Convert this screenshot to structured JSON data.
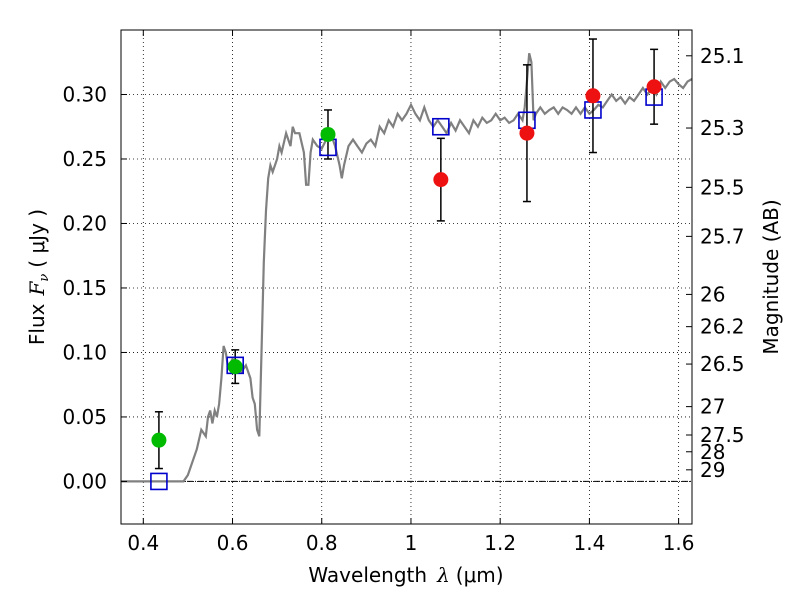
{
  "chart_data": {
    "type": "scatter",
    "xlabel_text": "Wavelength",
    "xlabel_symbol": "λ",
    "xlabel_unit": "(μm)",
    "ylabel_text": "Flux",
    "ylabel_symbol": "F",
    "ylabel_sub": "ν",
    "ylabel_unit": "( μJy )",
    "y2label": "Magnitude (AB)",
    "xlim": [
      0.35,
      1.63
    ],
    "ylim": [
      -0.033,
      0.35
    ],
    "x_ticks": [
      {
        "v": 0.4,
        "label": "0.4"
      },
      {
        "v": 0.6,
        "label": "0.6"
      },
      {
        "v": 0.8,
        "label": "0.8"
      },
      {
        "v": 1.0,
        "label": "1"
      },
      {
        "v": 1.2,
        "label": "1.2"
      },
      {
        "v": 1.4,
        "label": "1.4"
      },
      {
        "v": 1.6,
        "label": "1.6"
      }
    ],
    "y_ticks": [
      {
        "v": 0.0,
        "label": "0.00"
      },
      {
        "v": 0.05,
        "label": "0.05"
      },
      {
        "v": 0.1,
        "label": "0.10"
      },
      {
        "v": 0.15,
        "label": "0.15"
      },
      {
        "v": 0.2,
        "label": "0.20"
      },
      {
        "v": 0.25,
        "label": "0.25"
      },
      {
        "v": 0.3,
        "label": "0.30"
      }
    ],
    "mag_ticks": [
      {
        "v": 0.33,
        "label": "25.1"
      },
      {
        "v": 0.274,
        "label": "25.3"
      },
      {
        "v": 0.228,
        "label": "25.5"
      },
      {
        "v": 0.19,
        "label": "25.7"
      },
      {
        "v": 0.145,
        "label": "26"
      },
      {
        "v": 0.12,
        "label": "26.2"
      },
      {
        "v": 0.091,
        "label": "26.5"
      },
      {
        "v": 0.058,
        "label": "27"
      },
      {
        "v": 0.036,
        "label": "27.5"
      },
      {
        "v": 0.023,
        "label": "28"
      },
      {
        "v": 0.009,
        "label": "29"
      }
    ],
    "colors": {
      "model": "#808080",
      "green": "#00bb00",
      "red": "#ee1111",
      "box": "#0000cc"
    },
    "model_sed": [
      [
        0.35,
        0.0
      ],
      [
        0.49,
        0.0
      ],
      [
        0.5,
        0.005
      ],
      [
        0.52,
        0.025
      ],
      [
        0.53,
        0.04
      ],
      [
        0.54,
        0.035
      ],
      [
        0.545,
        0.05
      ],
      [
        0.55,
        0.055
      ],
      [
        0.555,
        0.045
      ],
      [
        0.56,
        0.055
      ],
      [
        0.565,
        0.05
      ],
      [
        0.57,
        0.06
      ],
      [
        0.575,
        0.08
      ],
      [
        0.58,
        0.105
      ],
      [
        0.585,
        0.1
      ],
      [
        0.59,
        0.088
      ],
      [
        0.6,
        0.095
      ],
      [
        0.61,
        0.09
      ],
      [
        0.62,
        0.085
      ],
      [
        0.63,
        0.09
      ],
      [
        0.64,
        0.08
      ],
      [
        0.645,
        0.065
      ],
      [
        0.65,
        0.06
      ],
      [
        0.655,
        0.04
      ],
      [
        0.66,
        0.035
      ],
      [
        0.665,
        0.1
      ],
      [
        0.67,
        0.17
      ],
      [
        0.675,
        0.21
      ],
      [
        0.68,
        0.235
      ],
      [
        0.685,
        0.245
      ],
      [
        0.69,
        0.24
      ],
      [
        0.7,
        0.25
      ],
      [
        0.705,
        0.26
      ],
      [
        0.71,
        0.255
      ],
      [
        0.72,
        0.27
      ],
      [
        0.73,
        0.26
      ],
      [
        0.735,
        0.275
      ],
      [
        0.74,
        0.27
      ],
      [
        0.75,
        0.27
      ],
      [
        0.76,
        0.255
      ],
      [
        0.765,
        0.23
      ],
      [
        0.77,
        0.23
      ],
      [
        0.775,
        0.255
      ],
      [
        0.78,
        0.265
      ],
      [
        0.79,
        0.26
      ],
      [
        0.8,
        0.258
      ],
      [
        0.81,
        0.265
      ],
      [
        0.82,
        0.27
      ],
      [
        0.83,
        0.26
      ],
      [
        0.84,
        0.245
      ],
      [
        0.845,
        0.235
      ],
      [
        0.85,
        0.245
      ],
      [
        0.86,
        0.26
      ],
      [
        0.87,
        0.265
      ],
      [
        0.88,
        0.26
      ],
      [
        0.89,
        0.255
      ],
      [
        0.9,
        0.262
      ],
      [
        0.91,
        0.265
      ],
      [
        0.92,
        0.26
      ],
      [
        0.93,
        0.275
      ],
      [
        0.94,
        0.27
      ],
      [
        0.95,
        0.28
      ],
      [
        0.96,
        0.275
      ],
      [
        0.97,
        0.285
      ],
      [
        0.98,
        0.28
      ],
      [
        0.99,
        0.285
      ],
      [
        1.0,
        0.292
      ],
      [
        1.01,
        0.285
      ],
      [
        1.02,
        0.28
      ],
      [
        1.03,
        0.29
      ],
      [
        1.04,
        0.28
      ],
      [
        1.05,
        0.275
      ],
      [
        1.06,
        0.28
      ],
      [
        1.07,
        0.275
      ],
      [
        1.08,
        0.27
      ],
      [
        1.09,
        0.278
      ],
      [
        1.1,
        0.272
      ],
      [
        1.11,
        0.28
      ],
      [
        1.12,
        0.275
      ],
      [
        1.13,
        0.27
      ],
      [
        1.14,
        0.28
      ],
      [
        1.15,
        0.275
      ],
      [
        1.16,
        0.282
      ],
      [
        1.17,
        0.278
      ],
      [
        1.18,
        0.28
      ],
      [
        1.19,
        0.285
      ],
      [
        1.2,
        0.28
      ],
      [
        1.21,
        0.282
      ],
      [
        1.22,
        0.278
      ],
      [
        1.23,
        0.28
      ],
      [
        1.24,
        0.285
      ],
      [
        1.25,
        0.28
      ],
      [
        1.255,
        0.29
      ],
      [
        1.26,
        0.31
      ],
      [
        1.265,
        0.332
      ],
      [
        1.27,
        0.325
      ],
      [
        1.275,
        0.28
      ],
      [
        1.28,
        0.285
      ],
      [
        1.29,
        0.29
      ],
      [
        1.3,
        0.285
      ],
      [
        1.31,
        0.288
      ],
      [
        1.32,
        0.29
      ],
      [
        1.33,
        0.285
      ],
      [
        1.34,
        0.29
      ],
      [
        1.35,
        0.288
      ],
      [
        1.36,
        0.285
      ],
      [
        1.37,
        0.29
      ],
      [
        1.38,
        0.285
      ],
      [
        1.39,
        0.29
      ],
      [
        1.4,
        0.285
      ],
      [
        1.41,
        0.288
      ],
      [
        1.42,
        0.292
      ],
      [
        1.43,
        0.29
      ],
      [
        1.44,
        0.295
      ],
      [
        1.45,
        0.3
      ],
      [
        1.46,
        0.295
      ],
      [
        1.47,
        0.298
      ],
      [
        1.48,
        0.293
      ],
      [
        1.49,
        0.298
      ],
      [
        1.5,
        0.295
      ],
      [
        1.51,
        0.3
      ],
      [
        1.52,
        0.305
      ],
      [
        1.53,
        0.3
      ],
      [
        1.54,
        0.305
      ],
      [
        1.55,
        0.3
      ],
      [
        1.56,
        0.31
      ],
      [
        1.57,
        0.305
      ],
      [
        1.58,
        0.31
      ],
      [
        1.59,
        0.312
      ],
      [
        1.6,
        0.308
      ],
      [
        1.61,
        0.305
      ],
      [
        1.62,
        0.31
      ],
      [
        1.63,
        0.312
      ]
    ],
    "observed_green": [
      {
        "x": 0.435,
        "y": 0.032,
        "err": 0.022
      },
      {
        "x": 0.606,
        "y": 0.089,
        "err": 0.013
      },
      {
        "x": 0.814,
        "y": 0.269,
        "err": 0.019
      }
    ],
    "observed_red": [
      {
        "x": 1.067,
        "y": 0.234,
        "err": 0.032
      },
      {
        "x": 1.26,
        "y": 0.27,
        "err": 0.053
      },
      {
        "x": 1.408,
        "y": 0.299,
        "err": 0.044
      },
      {
        "x": 1.545,
        "y": 0.306,
        "err": 0.029
      }
    ],
    "model_bands": [
      {
        "x": 0.435,
        "y": 0.0
      },
      {
        "x": 0.606,
        "y": 0.09
      },
      {
        "x": 0.814,
        "y": 0.259
      },
      {
        "x": 1.067,
        "y": 0.275
      },
      {
        "x": 1.26,
        "y": 0.28
      },
      {
        "x": 1.408,
        "y": 0.288
      },
      {
        "x": 1.545,
        "y": 0.298
      }
    ]
  }
}
